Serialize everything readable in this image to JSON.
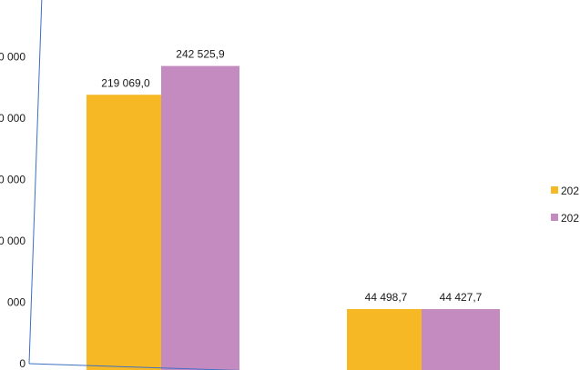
{
  "chart_data": {
    "type": "bar",
    "categories": [
      "",
      ""
    ],
    "series": [
      {
        "name": "202",
        "color": "#f6b824",
        "values": [
          219069.0,
          44498.7
        ],
        "labels": [
          "219 069,0",
          "44 498,7"
        ]
      },
      {
        "name": "202",
        "color": "#c48bc0",
        "values": [
          242525.9,
          44427.7
        ],
        "labels": [
          "242 525,9",
          "44 427,7"
        ]
      }
    ],
    "yticks": [
      {
        "value": 0,
        "label": "0"
      },
      {
        "value": 50000,
        "label": "000"
      },
      {
        "value": 100000,
        "label": "0 000"
      },
      {
        "value": 150000,
        "label": "0 000"
      },
      {
        "value": 200000,
        "label": "0 000"
      },
      {
        "value": 250000,
        "label": "0 000"
      }
    ],
    "ylim": [
      0,
      300000
    ],
    "title": "",
    "xlabel": "",
    "ylabel": "",
    "grid": false,
    "legend_position": "right",
    "axis_color": "#3c6fc4"
  }
}
